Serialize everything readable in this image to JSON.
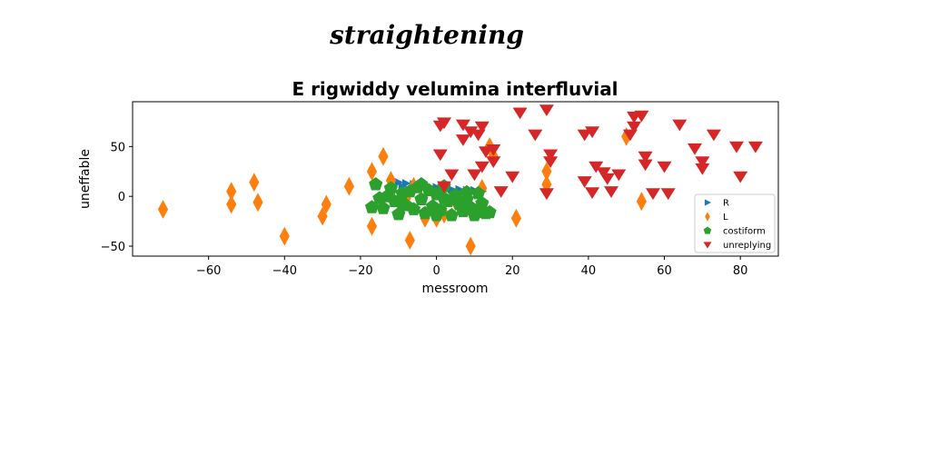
{
  "suptitle": "straightening",
  "chart_data": {
    "type": "scatter",
    "title": "E rigwiddy velumina interfluvial",
    "xlabel": "messroom",
    "ylabel": "uneffable",
    "xlim": [
      -80,
      90
    ],
    "ylim": [
      -60,
      95
    ],
    "xticks": [
      -60,
      -40,
      -20,
      0,
      20,
      40,
      60,
      80
    ],
    "yticks": [
      -50,
      0,
      50
    ],
    "grid": false,
    "legend_position": "lower-right",
    "series": [
      {
        "name": "R",
        "marker": "triangle-right",
        "color": "#1f77b4",
        "points": [
          [
            -10,
            14
          ],
          [
            -8,
            13
          ],
          [
            -6,
            12
          ],
          [
            -4,
            11
          ],
          [
            -2,
            10
          ],
          [
            0,
            9
          ],
          [
            2,
            8
          ],
          [
            4,
            7
          ],
          [
            6,
            7
          ],
          [
            8,
            6
          ],
          [
            10,
            6
          ],
          [
            12,
            5
          ],
          [
            -9,
            10
          ],
          [
            -5,
            8
          ],
          [
            1,
            7
          ],
          [
            5,
            5
          ],
          [
            9,
            4
          ]
        ]
      },
      {
        "name": "L",
        "marker": "diamond",
        "color": "#ff7f0e",
        "points": [
          [
            -72,
            -13
          ],
          [
            -54,
            5
          ],
          [
            -54,
            -8
          ],
          [
            -48,
            14
          ],
          [
            -47,
            -6
          ],
          [
            -40,
            -40
          ],
          [
            -30,
            -20
          ],
          [
            -29,
            -8
          ],
          [
            -23,
            10
          ],
          [
            -17,
            25
          ],
          [
            -17,
            -30
          ],
          [
            -14,
            40
          ],
          [
            -12,
            16
          ],
          [
            -8,
            -2
          ],
          [
            -7,
            -44
          ],
          [
            -6,
            10
          ],
          [
            -3,
            -22
          ],
          [
            0,
            -22
          ],
          [
            2,
            -18
          ],
          [
            5,
            -5
          ],
          [
            7,
            -8
          ],
          [
            9,
            -50
          ],
          [
            12,
            8
          ],
          [
            14,
            50
          ],
          [
            15,
            40
          ],
          [
            21,
            -22
          ],
          [
            29,
            25
          ],
          [
            29,
            12
          ],
          [
            50,
            60
          ],
          [
            54,
            -5
          ]
        ]
      },
      {
        "name": "costiform",
        "marker": "pentagon",
        "color": "#2ca02c",
        "points": [
          [
            -17,
            -11
          ],
          [
            -15,
            -2
          ],
          [
            -14,
            -12
          ],
          [
            -12,
            8
          ],
          [
            -11,
            -5
          ],
          [
            -10,
            -18
          ],
          [
            -9,
            3
          ],
          [
            -8,
            -9
          ],
          [
            -7,
            5
          ],
          [
            -6,
            -13
          ],
          [
            -5,
            9
          ],
          [
            -4,
            -3
          ],
          [
            -3,
            -17
          ],
          [
            -2,
            6
          ],
          [
            -1,
            -10
          ],
          [
            0,
            2
          ],
          [
            1,
            -14
          ],
          [
            2,
            10
          ],
          [
            3,
            -5
          ],
          [
            4,
            -19
          ],
          [
            5,
            1
          ],
          [
            6,
            -8
          ],
          [
            7,
            -15
          ],
          [
            8,
            4
          ],
          [
            9,
            -11
          ],
          [
            10,
            -19
          ],
          [
            11,
            3
          ],
          [
            12,
            -7
          ],
          [
            13,
            -17
          ],
          [
            14,
            -16
          ],
          [
            -16,
            12
          ],
          [
            -13,
            0
          ],
          [
            0,
            -19
          ],
          [
            -9,
            -8
          ],
          [
            -4,
            12
          ],
          [
            2,
            -2
          ],
          [
            8,
            -3
          ],
          [
            11,
            -16
          ]
        ]
      },
      {
        "name": "unreplying",
        "marker": "triangle-down",
        "color": "#d62728",
        "points": [
          [
            1,
            71
          ],
          [
            1,
            42
          ],
          [
            2,
            74
          ],
          [
            2,
            10
          ],
          [
            4,
            22
          ],
          [
            7,
            72
          ],
          [
            7,
            57
          ],
          [
            9,
            65
          ],
          [
            10,
            22
          ],
          [
            11,
            62
          ],
          [
            12,
            70
          ],
          [
            12,
            30
          ],
          [
            13,
            45
          ],
          [
            15,
            47
          ],
          [
            15,
            35
          ],
          [
            17,
            5
          ],
          [
            20,
            20
          ],
          [
            22,
            84
          ],
          [
            26,
            62
          ],
          [
            29,
            87
          ],
          [
            29,
            3
          ],
          [
            30,
            42
          ],
          [
            30,
            35
          ],
          [
            39,
            62
          ],
          [
            39,
            15
          ],
          [
            41,
            65
          ],
          [
            41,
            4
          ],
          [
            42,
            30
          ],
          [
            44,
            24
          ],
          [
            45,
            18
          ],
          [
            46,
            5
          ],
          [
            48,
            22
          ],
          [
            51,
            62
          ],
          [
            52,
            70
          ],
          [
            52,
            80
          ],
          [
            54,
            81
          ],
          [
            55,
            40
          ],
          [
            55,
            32
          ],
          [
            57,
            3
          ],
          [
            60,
            30
          ],
          [
            61,
            3
          ],
          [
            64,
            72
          ],
          [
            68,
            48
          ],
          [
            70,
            35
          ],
          [
            70,
            28
          ],
          [
            73,
            62
          ],
          [
            79,
            50
          ],
          [
            80,
            20
          ],
          [
            84,
            50
          ]
        ]
      }
    ]
  }
}
